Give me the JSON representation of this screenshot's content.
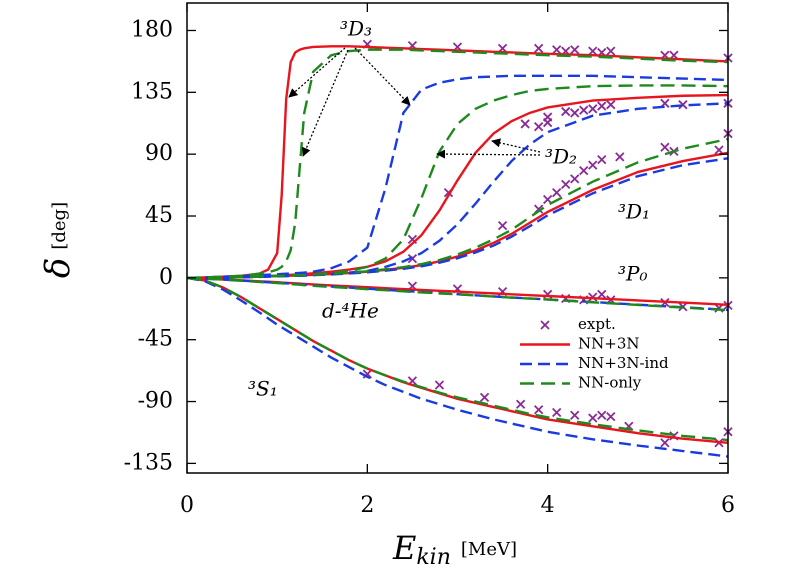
{
  "chart_data": {
    "type": "line",
    "xlabel": "E",
    "xlabel_sub": "kin",
    "xunit": "[MeV]",
    "ylabel": "δ",
    "yunit": "[deg]",
    "xlim": [
      0,
      6
    ],
    "ylim": [
      -142,
      200
    ],
    "xticks": [
      0,
      2,
      4,
      6
    ],
    "yticks": [
      180,
      135,
      90,
      45,
      0,
      -45,
      -90,
      -135
    ],
    "legend": "lower right",
    "annotations": [
      "³D₃",
      "³D₂",
      "³D₁",
      "³P₀",
      "d-⁴He",
      "³S₁"
    ],
    "x": [
      0,
      0.2,
      0.4,
      0.6,
      0.8,
      0.9,
      1.0,
      1.05,
      1.1,
      1.15,
      1.2,
      1.25,
      1.3,
      1.4,
      1.6,
      1.8,
      2.0,
      2.2,
      2.4,
      2.6,
      2.8,
      3.0,
      3.2,
      3.4,
      3.6,
      3.8,
      4.0,
      4.5,
      5.0,
      5.5,
      6.0
    ],
    "series": [
      {
        "name": "expt.",
        "type": "scatter",
        "color": "#8a2a96",
        "x": [
          2.0,
          2.5,
          3.0,
          3.5,
          3.9,
          4.1,
          4.3,
          4.2,
          4.5,
          4.7,
          4.6,
          5.3,
          5.4,
          6.0,
          3.75,
          4.0,
          4.2,
          4.4,
          4.5,
          4.7,
          4.6,
          4.3,
          4.0,
          5.3,
          5.5,
          6.0,
          3.9,
          2.5,
          2.5,
          2.9,
          3.5,
          3.9,
          4.0,
          4.1,
          4.2,
          4.3,
          4.4,
          4.5,
          4.6,
          4.8,
          5.3,
          5.4,
          6.0,
          5.9,
          2.5,
          3.0,
          3.5,
          4.0,
          4.2,
          4.4,
          4.5,
          4.6,
          4.7,
          5.3,
          5.5,
          6.0,
          5.9,
          2.0,
          2.5,
          2.8,
          3.3,
          3.7,
          3.9,
          4.1,
          4.3,
          4.5,
          4.6,
          4.7,
          4.9,
          5.3,
          5.4,
          6.0,
          5.9
        ],
        "values": [
          170,
          169,
          168,
          167,
          167,
          166,
          166,
          165,
          165,
          165,
          164,
          162,
          162,
          160,
          112,
          117,
          121,
          122,
          123,
          126,
          125,
          120,
          113,
          127,
          126,
          127,
          110,
          14,
          28,
          62,
          38,
          50,
          57,
          62,
          68,
          72,
          78,
          82,
          86,
          88,
          95,
          92,
          105,
          93,
          -6,
          -8,
          -10,
          -12,
          -15,
          -16,
          -14,
          -12,
          -16,
          -18,
          -21,
          -20,
          -22,
          -70,
          -75,
          -78,
          -87,
          -92,
          -96,
          -98,
          -100,
          -102,
          -100,
          -101,
          -108,
          -120,
          -115,
          -112,
          -120
        ]
      },
      {
        "name": "NN+3N",
        "color": "#e8141e",
        "dash": "solid",
        "curves": [
          [
            0,
            0.3,
            0.8,
            1.5,
            3,
            6,
            18,
            60,
            130,
            157,
            164,
            166,
            167,
            168,
            168.5,
            168.5,
            168,
            167.5,
            167,
            166.5,
            166,
            165.5,
            165,
            164.5,
            164,
            163.5,
            163,
            162,
            160.5,
            159,
            157.5
          ],
          [
            0,
            0.1,
            0.3,
            0.6,
            1,
            1.3,
            1.6,
            1.8,
            2,
            2.2,
            2.4,
            2.6,
            2.8,
            3.3,
            4.5,
            6,
            8,
            12,
            19,
            31,
            49,
            71,
            91,
            105,
            114,
            120,
            124,
            129,
            131,
            132.5,
            133
          ],
          [
            0,
            0.1,
            0.3,
            0.6,
            0.9,
            1.1,
            1.3,
            1.4,
            1.5,
            1.6,
            1.7,
            1.8,
            1.9,
            2.2,
            2.8,
            3.5,
            4.5,
            5.8,
            7.3,
            9.2,
            12,
            15.5,
            20,
            25.5,
            32,
            40,
            48,
            64,
            77,
            85,
            91
          ],
          [
            0,
            -0.5,
            -1.1,
            -1.8,
            -2.5,
            -2.8,
            -3.2,
            -3.4,
            -3.6,
            -3.8,
            -4,
            -4.2,
            -4.4,
            -4.8,
            -5.5,
            -6.2,
            -6.8,
            -7.5,
            -8.2,
            -8.8,
            -9.4,
            -10,
            -10.7,
            -11.3,
            -12,
            -12.6,
            -13.2,
            -14.8,
            -16.4,
            -18,
            -19.6
          ],
          [
            0,
            -2,
            -7,
            -14,
            -22,
            -26,
            -30,
            -32,
            -34,
            -36,
            -38,
            -40,
            -42,
            -46,
            -53,
            -60,
            -66,
            -71,
            -76,
            -80,
            -84,
            -88,
            -91,
            -94,
            -97,
            -100,
            -103,
            -108,
            -113,
            -117,
            -120
          ]
        ]
      },
      {
        "name": "NN+3N-ind",
        "color": "#1a3be0",
        "dash": "12,6",
        "curves": [
          [
            0,
            0.3,
            0.8,
            1.3,
            2,
            2.3,
            2.6,
            2.8,
            3,
            3.2,
            3.4,
            3.6,
            3.8,
            4.5,
            7,
            12,
            22,
            65,
            120,
            137,
            142,
            144.5,
            146,
            146.5,
            147,
            147,
            147,
            147,
            146,
            145,
            144
          ],
          [
            0,
            0.1,
            0.2,
            0.4,
            0.7,
            0.9,
            1.1,
            1.2,
            1.3,
            1.4,
            1.5,
            1.6,
            1.7,
            2,
            2.8,
            3.8,
            5,
            8,
            12,
            18,
            27,
            39,
            54,
            70,
            85,
            97,
            106,
            118,
            123,
            125.5,
            127
          ],
          [
            0,
            0.1,
            0.3,
            0.5,
            0.8,
            1,
            1.1,
            1.2,
            1.3,
            1.4,
            1.5,
            1.6,
            1.7,
            2,
            2.5,
            3.2,
            4,
            5.2,
            6.6,
            8.4,
            11,
            14.3,
            18.5,
            23.5,
            30,
            37.5,
            45.5,
            61.5,
            74,
            82,
            87
          ],
          [
            0,
            -0.6,
            -1.2,
            -2,
            -2.8,
            -3.2,
            -3.6,
            -3.8,
            -4,
            -4.2,
            -4.5,
            -4.7,
            -5,
            -5.5,
            -6.3,
            -7.1,
            -7.9,
            -8.7,
            -9.5,
            -10.3,
            -11.1,
            -11.9,
            -12.7,
            -13.5,
            -14.3,
            -15,
            -15.7,
            -17.6,
            -19.5,
            -21.4,
            -23.3
          ],
          [
            0,
            -2.5,
            -8.5,
            -16.5,
            -25,
            -29.5,
            -34,
            -36,
            -38,
            -40,
            -42,
            -44,
            -46,
            -50,
            -58,
            -65,
            -72,
            -78,
            -83,
            -88,
            -92,
            -96,
            -99.5,
            -103,
            -106,
            -109,
            -112,
            -117.5,
            -122,
            -126,
            -130
          ]
        ]
      },
      {
        "name": "NN-only",
        "color": "#1e8a1e",
        "dash": "14,7",
        "curves": [
          [
            0,
            0.3,
            0.8,
            1.5,
            3,
            4,
            6,
            8,
            12,
            20,
            40,
            80,
            120,
            150,
            162,
            165,
            166,
            166,
            166,
            165.5,
            165,
            164.5,
            164,
            163.5,
            163,
            162.5,
            162,
            161,
            159.5,
            158,
            157
          ],
          [
            0,
            0.1,
            0.3,
            0.6,
            1,
            1.2,
            1.4,
            1.5,
            1.6,
            1.7,
            1.8,
            1.9,
            2,
            2.5,
            3.5,
            5,
            8,
            14,
            28,
            58,
            92,
            112,
            123,
            129,
            133,
            136,
            137.5,
            139.5,
            140,
            140,
            139.5
          ],
          [
            0,
            0.1,
            0.3,
            0.6,
            1,
            1.2,
            1.4,
            1.5,
            1.6,
            1.7,
            1.8,
            1.9,
            2,
            2.4,
            3,
            3.8,
            4.8,
            6.2,
            7.8,
            10,
            13,
            17,
            22,
            28,
            35,
            44,
            53,
            70,
            84,
            94,
            101
          ],
          [
            0,
            -0.6,
            -1.3,
            -2.1,
            -3,
            -3.4,
            -3.8,
            -4,
            -4.3,
            -4.5,
            -4.8,
            -5,
            -5.3,
            -5.8,
            -6.6,
            -7.4,
            -8.2,
            -9,
            -9.8,
            -10.6,
            -11.3,
            -12,
            -12.8,
            -13.6,
            -14.4,
            -15.1,
            -15.8,
            -17.8,
            -19.7,
            -21.6,
            -23.5
          ],
          [
            0,
            -2,
            -7,
            -14,
            -22,
            -26,
            -30,
            -32,
            -34,
            -36,
            -38,
            -40,
            -42,
            -46,
            -53,
            -60,
            -66,
            -71,
            -75.5,
            -79.5,
            -83.5,
            -87,
            -90,
            -93,
            -96,
            -99,
            -101.5,
            -106.5,
            -111,
            -115,
            -118
          ]
        ]
      }
    ]
  }
}
